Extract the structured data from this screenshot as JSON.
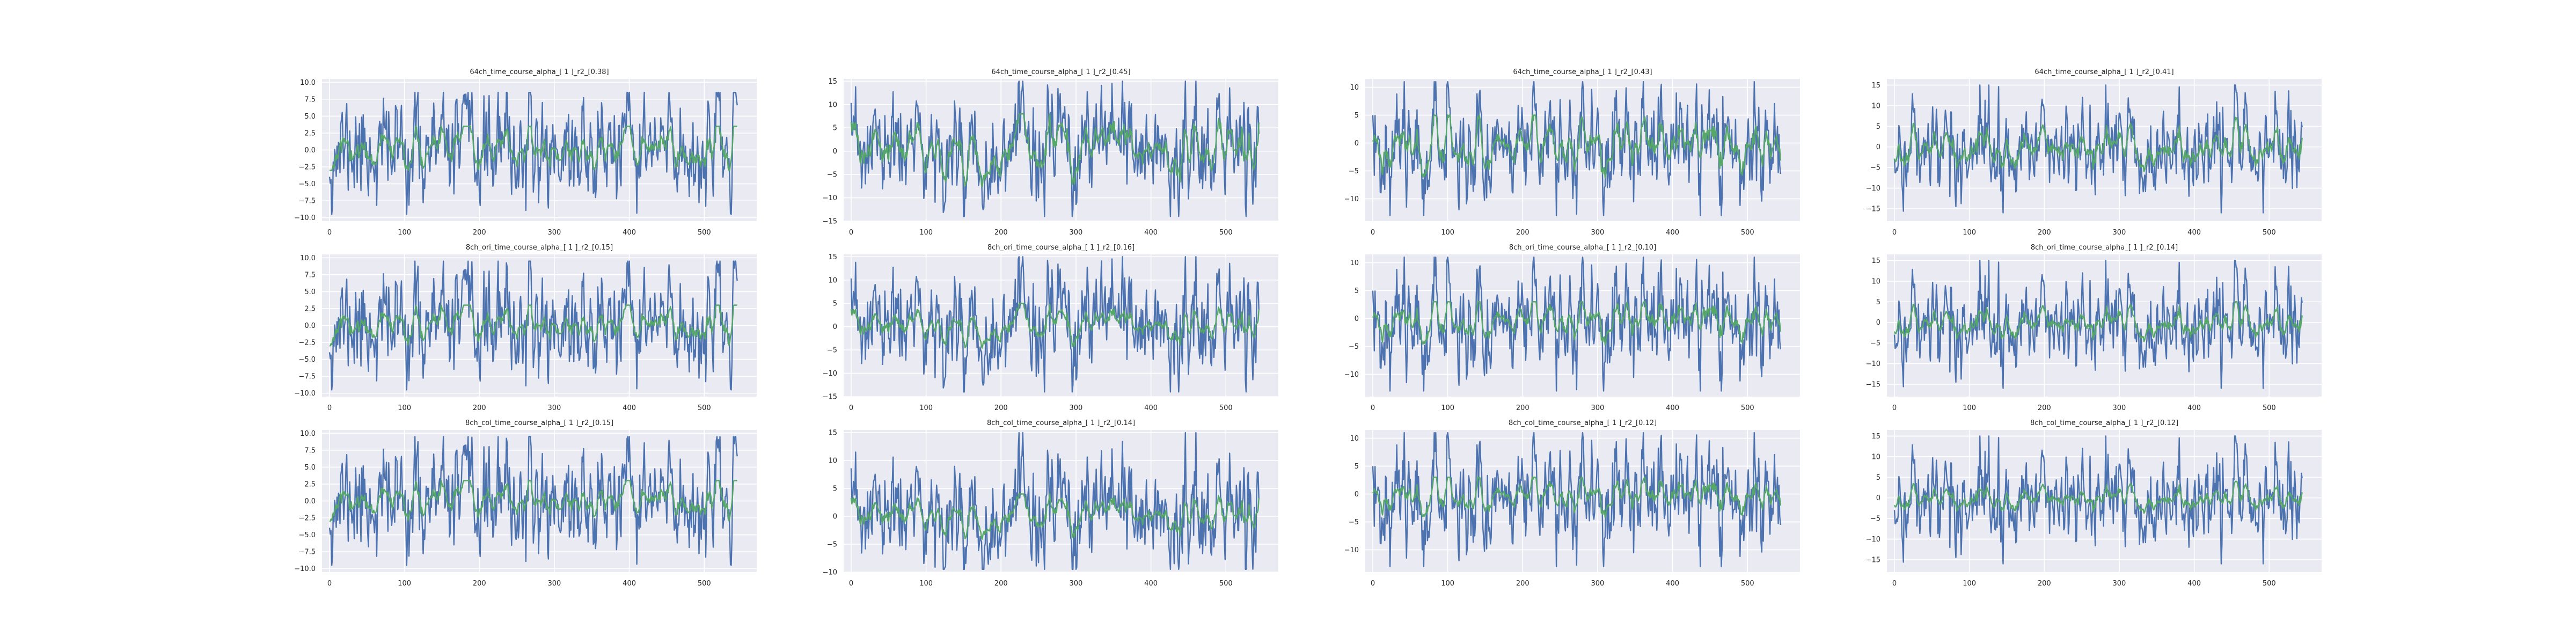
{
  "colors": {
    "background": "#EAEAF2",
    "grid": "#FFFFFF",
    "tick_text": "#262626",
    "series_blue": "#4C72B0",
    "series_green": "#55A868"
  },
  "chart_data": [
    {
      "type": "line",
      "title": "64ch_time_course_alpha_[ 1 ]_r2_[0.38]",
      "xlim": [
        -10,
        570
      ],
      "ylim": [
        -10.5,
        10.5
      ],
      "xticks": [
        0,
        100,
        200,
        300,
        400,
        500
      ],
      "yticks": [
        -10.0,
        -7.5,
        -5.0,
        -2.5,
        0.0,
        2.5,
        5.0,
        7.5,
        10.0
      ],
      "ytick_labels": [
        "−10.0",
        "−7.5",
        "−5.0",
        "−2.5",
        "0.0",
        "2.5",
        "5.0",
        "7.5",
        "10.0"
      ],
      "grid": true,
      "n_points": 545,
      "blue_amplitude": 4.0,
      "blue_max": 8.5,
      "blue_min": -9.5,
      "green_amplitude": 1.6,
      "green_max": 3.5,
      "green_min": -3.0,
      "seed": 11
    },
    {
      "type": "line",
      "title": "64ch_time_course_alpha_[ 1 ]_r2_[0.45]",
      "xlim": [
        -10,
        570
      ],
      "ylim": [
        -15,
        15.5
      ],
      "xticks": [
        0,
        100,
        200,
        300,
        400,
        500
      ],
      "yticks": [
        -15,
        -10,
        -5,
        0,
        5,
        10,
        15
      ],
      "ytick_labels": [
        "−15",
        "−10",
        "−5",
        "0",
        "5",
        "10",
        "15"
      ],
      "grid": true,
      "n_points": 545,
      "blue_amplitude": 6.0,
      "blue_max": 15,
      "blue_min": -14,
      "green_amplitude": 3.0,
      "green_max": 8,
      "green_min": -8,
      "seed": 23
    },
    {
      "type": "line",
      "title": "64ch_time_course_alpha_[ 1 ]_r2_[0.43]",
      "xlim": [
        -10,
        570
      ],
      "ylim": [
        -14,
        11.5
      ],
      "xticks": [
        0,
        100,
        200,
        300,
        400,
        500
      ],
      "yticks": [
        -10,
        -5,
        0,
        5,
        10
      ],
      "ytick_labels": [
        "−10",
        "−5",
        "0",
        "5",
        "10"
      ],
      "grid": true,
      "n_points": 545,
      "blue_amplitude": 5.0,
      "blue_max": 11,
      "blue_min": -13,
      "green_amplitude": 2.4,
      "green_max": 5,
      "green_min": -8,
      "seed": 37
    },
    {
      "type": "line",
      "title": "64ch_time_course_alpha_[ 1 ]_r2_[0.41]",
      "xlim": [
        -10,
        570
      ],
      "ylim": [
        -18,
        16.5
      ],
      "xticks": [
        0,
        100,
        200,
        300,
        400,
        500
      ],
      "yticks": [
        -15,
        -10,
        -5,
        0,
        5,
        10,
        15
      ],
      "ytick_labels": [
        "−15",
        "−10",
        "−5",
        "0",
        "5",
        "10",
        "15"
      ],
      "grid": true,
      "n_points": 545,
      "blue_amplitude": 6.0,
      "blue_max": 15,
      "blue_min": -16,
      "green_amplitude": 2.6,
      "green_max": 8,
      "green_min": -6,
      "seed": 41
    },
    {
      "type": "line",
      "title": "8ch_ori_time_course_alpha_[ 1 ]_r2_[0.15]",
      "xlim": [
        -10,
        570
      ],
      "ylim": [
        -10.5,
        10.5
      ],
      "xticks": [
        0,
        100,
        200,
        300,
        400,
        500
      ],
      "yticks": [
        -10.0,
        -7.5,
        -5.0,
        -2.5,
        0.0,
        2.5,
        5.0,
        7.5,
        10.0
      ],
      "ytick_labels": [
        "−10.0",
        "−7.5",
        "−5.0",
        "−2.5",
        "0.0",
        "2.5",
        "5.0",
        "7.5",
        "10.0"
      ],
      "grid": true,
      "n_points": 545,
      "blue_amplitude": 4.0,
      "blue_max": 9.5,
      "blue_min": -9.5,
      "green_amplitude": 1.3,
      "green_max": 3.0,
      "green_min": -3.0,
      "seed": 11
    },
    {
      "type": "line",
      "title": "8ch_ori_time_course_alpha_[ 1 ]_r2_[0.16]",
      "xlim": [
        -10,
        570
      ],
      "ylim": [
        -15,
        15.5
      ],
      "xticks": [
        0,
        100,
        200,
        300,
        400,
        500
      ],
      "yticks": [
        -15,
        -10,
        -5,
        0,
        5,
        10,
        15
      ],
      "ytick_labels": [
        "−15",
        "−10",
        "−5",
        "0",
        "5",
        "10",
        "15"
      ],
      "grid": true,
      "n_points": 545,
      "blue_amplitude": 6.0,
      "blue_max": 15,
      "blue_min": -14,
      "green_amplitude": 1.8,
      "green_max": 5,
      "green_min": -6,
      "seed": 23
    },
    {
      "type": "line",
      "title": "8ch_ori_time_course_alpha_[ 1 ]_r2_[0.10]",
      "xlim": [
        -10,
        570
      ],
      "ylim": [
        -14,
        11.5
      ],
      "xticks": [
        0,
        100,
        200,
        300,
        400,
        500
      ],
      "yticks": [
        -10,
        -5,
        0,
        5,
        10
      ],
      "ytick_labels": [
        "−10",
        "−5",
        "0",
        "5",
        "10"
      ],
      "grid": true,
      "n_points": 545,
      "blue_amplitude": 5.0,
      "blue_max": 11,
      "blue_min": -13,
      "green_amplitude": 1.8,
      "green_max": 3,
      "green_min": -6,
      "seed": 37
    },
    {
      "type": "line",
      "title": "8ch_ori_time_course_alpha_[ 1 ]_r2_[0.14]",
      "xlim": [
        -10,
        570
      ],
      "ylim": [
        -18,
        16.5
      ],
      "xticks": [
        0,
        100,
        200,
        300,
        400,
        500
      ],
      "yticks": [
        -15,
        -10,
        -5,
        0,
        5,
        10,
        15
      ],
      "ytick_labels": [
        "−15",
        "−10",
        "−5",
        "0",
        "5",
        "10",
        "15"
      ],
      "grid": true,
      "n_points": 545,
      "blue_amplitude": 6.0,
      "blue_max": 15,
      "blue_min": -16,
      "green_amplitude": 2.0,
      "green_max": 5,
      "green_min": -5,
      "seed": 41
    },
    {
      "type": "line",
      "title": "8ch_col_time_course_alpha_[ 1 ]_r2_[0.15]",
      "xlim": [
        -10,
        570
      ],
      "ylim": [
        -10.5,
        10.5
      ],
      "xticks": [
        0,
        100,
        200,
        300,
        400,
        500
      ],
      "yticks": [
        -10.0,
        -7.5,
        -5.0,
        -2.5,
        0.0,
        2.5,
        5.0,
        7.5,
        10.0
      ],
      "ytick_labels": [
        "−10.0",
        "−7.5",
        "−5.0",
        "−2.5",
        "0.0",
        "2.5",
        "5.0",
        "7.5",
        "10.0"
      ],
      "grid": true,
      "n_points": 545,
      "blue_amplitude": 4.0,
      "blue_max": 9.5,
      "blue_min": -9.5,
      "green_amplitude": 1.3,
      "green_max": 3.0,
      "green_min": -3.0,
      "seed": 11
    },
    {
      "type": "line",
      "title": "8ch_col_time_course_alpha_[ 1 ]_r2_[0.14]",
      "xlim": [
        -10,
        570
      ],
      "ylim": [
        -10,
        15.5
      ],
      "xticks": [
        0,
        100,
        200,
        300,
        400,
        500
      ],
      "yticks": [
        -10,
        -5,
        0,
        5,
        10,
        15
      ],
      "ytick_labels": [
        "−10",
        "−5",
        "0",
        "5",
        "10",
        "15"
      ],
      "grid": true,
      "n_points": 545,
      "blue_amplitude": 5.0,
      "blue_max": 15,
      "blue_min": -9.5,
      "green_amplitude": 1.6,
      "green_max": 4,
      "green_min": -5,
      "seed": 23
    },
    {
      "type": "line",
      "title": "8ch_col_time_course_alpha_[ 1 ]_r2_[0.12]",
      "xlim": [
        -10,
        570
      ],
      "ylim": [
        -14,
        11.5
      ],
      "xticks": [
        0,
        100,
        200,
        300,
        400,
        500
      ],
      "yticks": [
        -10,
        -5,
        0,
        5,
        10
      ],
      "ytick_labels": [
        "−10",
        "−5",
        "0",
        "5",
        "10"
      ],
      "grid": true,
      "n_points": 545,
      "blue_amplitude": 5.0,
      "blue_max": 11,
      "blue_min": -13,
      "green_amplitude": 1.6,
      "green_max": 3,
      "green_min": -6,
      "seed": 37
    },
    {
      "type": "line",
      "title": "8ch_col_time_course_alpha_[ 1 ]_r2_[0.12]",
      "xlim": [
        -10,
        570
      ],
      "ylim": [
        -18,
        16.5
      ],
      "xticks": [
        0,
        100,
        200,
        300,
        400,
        500
      ],
      "yticks": [
        -15,
        -10,
        -5,
        0,
        5,
        10,
        15
      ],
      "ytick_labels": [
        "−15",
        "−10",
        "−5",
        "0",
        "5",
        "10",
        "15"
      ],
      "grid": true,
      "n_points": 545,
      "blue_amplitude": 6.0,
      "blue_max": 15,
      "blue_min": -16,
      "green_amplitude": 1.6,
      "green_max": 4,
      "green_min": -5,
      "seed": 41
    }
  ]
}
